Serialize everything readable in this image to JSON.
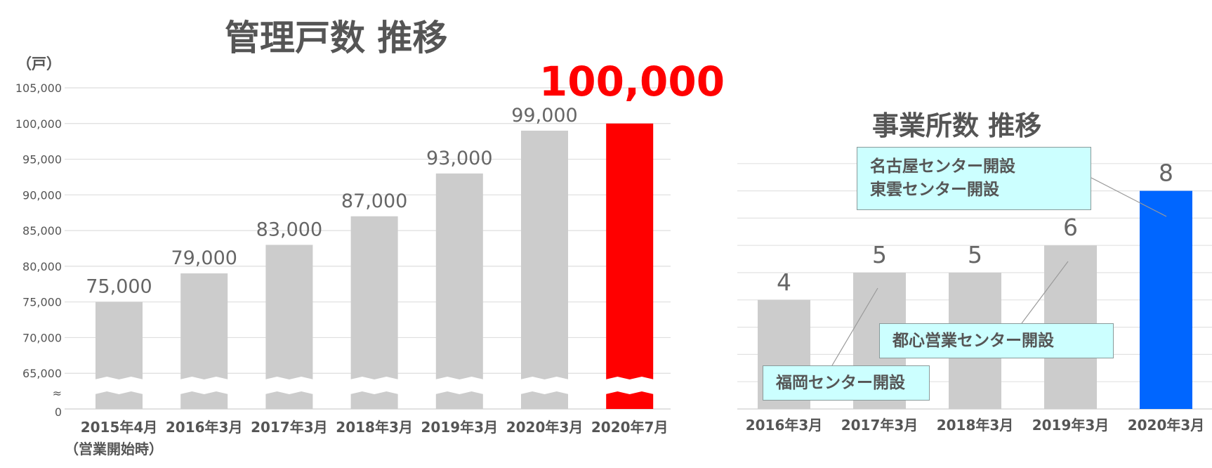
{
  "chart_data": [
    {
      "type": "bar",
      "title": "管理戸数 推移",
      "ylabel": "（戸）",
      "categories": [
        "2015年4月",
        "2016年3月",
        "2017年3月",
        "2018年3月",
        "2019年3月",
        "2020年3月",
        "2020年7月"
      ],
      "category_subtitle": "（営業開始時）",
      "values": [
        75000,
        79000,
        83000,
        87000,
        93000,
        99000,
        100000
      ],
      "value_labels": [
        "75,000",
        "79,000",
        "83,000",
        "87,000",
        "93,000",
        "99,000",
        "100,000"
      ],
      "yticks": [
        "105,000",
        "100,000",
        "95,000",
        "90,000",
        "85,000",
        "80,000",
        "75,000",
        "70,000",
        "65,000",
        "≈",
        "0"
      ],
      "ylim": [
        60000,
        105000
      ],
      "axis_break": true,
      "grid": true,
      "colors": {
        "default": "#cccccc",
        "highlight": "#ff0000"
      },
      "highlight_index": 6
    },
    {
      "type": "bar",
      "title": "事業所数 推移",
      "categories": [
        "2016年3月",
        "2017年3月",
        "2018年3月",
        "2019年3月",
        "2020年3月"
      ],
      "values": [
        4,
        5,
        5,
        6,
        8
      ],
      "ylim": [
        0,
        9
      ],
      "grid": true,
      "colors": {
        "default": "#cccccc",
        "highlight": "#0066ff"
      },
      "highlight_index": 4,
      "annotations": [
        {
          "lines": [
            "名古屋センター開設",
            "東雲センター開設"
          ],
          "category": "2020年3月"
        },
        {
          "lines": [
            "都心営業センター開設"
          ],
          "category": "2019年3月"
        },
        {
          "lines": [
            "福岡センター開設"
          ],
          "category": "2017年3月"
        }
      ]
    }
  ]
}
